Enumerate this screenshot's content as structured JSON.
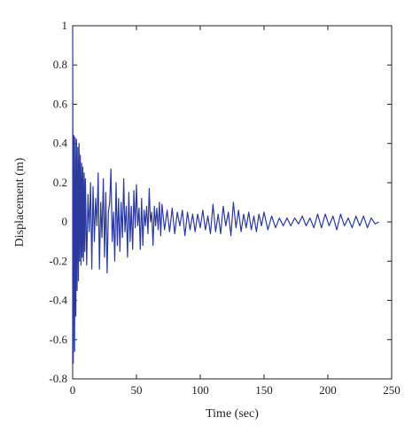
{
  "chart_data": {
    "type": "line",
    "title": "",
    "xlabel": "Time (sec)",
    "ylabel": "Displacement (m)",
    "xlim": [
      0,
      250
    ],
    "ylim": [
      -0.8,
      1
    ],
    "xticks": [
      0,
      50,
      100,
      150,
      200,
      250
    ],
    "yticks": [
      -0.8,
      -0.6,
      -0.4,
      -0.2,
      0,
      0.2,
      0.4,
      0.6,
      0.8,
      1
    ],
    "xtick_labels": [
      "0",
      "50",
      "100",
      "150",
      "200",
      "250"
    ],
    "ytick_labels": [
      "-0.8",
      "-0.6",
      "-0.4",
      "-0.2",
      "0",
      "0.2",
      "0.4",
      "0.6",
      "0.8",
      "1"
    ],
    "grid": false,
    "series": [
      {
        "color": "#2b3a9c",
        "x": [
          0,
          0.5,
          1,
          1.5,
          2,
          2.5,
          3,
          3.5,
          4,
          4.5,
          5,
          5.5,
          6,
          6.5,
          7,
          7.5,
          8,
          8.5,
          9,
          9.5,
          10,
          11,
          12,
          13,
          14,
          15,
          16,
          17,
          18,
          19,
          20,
          21,
          22,
          23,
          24,
          25,
          26,
          27,
          28,
          29,
          30,
          31,
          32,
          33,
          34,
          35,
          36,
          37,
          38,
          39,
          40,
          41,
          42,
          43,
          44,
          45,
          46,
          47,
          48,
          49,
          50,
          51,
          52,
          53,
          54,
          55,
          56,
          57,
          58,
          59,
          60,
          61,
          62,
          63,
          64,
          65,
          66,
          67,
          68,
          69,
          70,
          72,
          74,
          76,
          78,
          80,
          82,
          84,
          86,
          88,
          90,
          92,
          94,
          96,
          98,
          100,
          102,
          104,
          106,
          108,
          110,
          112,
          114,
          116,
          118,
          120,
          122,
          124,
          126,
          128,
          130,
          132,
          134,
          136,
          138,
          140,
          142,
          144,
          146,
          148,
          150,
          153,
          156,
          159,
          162,
          165,
          168,
          171,
          174,
          177,
          180,
          183,
          186,
          189,
          192,
          195,
          198,
          201,
          204,
          207,
          210,
          213,
          216,
          219,
          222,
          225,
          228,
          231,
          234,
          237,
          240
        ],
        "y": [
          1.0,
          -0.72,
          0.44,
          -0.66,
          0.43,
          -0.48,
          0.42,
          -0.35,
          0.38,
          -0.3,
          0.4,
          -0.2,
          0.34,
          -0.22,
          0.3,
          -0.18,
          0.28,
          -0.2,
          0.25,
          -0.15,
          0.22,
          -0.22,
          0.14,
          -0.05,
          0.2,
          -0.24,
          0.18,
          -0.1,
          0.12,
          -0.02,
          0.25,
          -0.24,
          0.1,
          -0.08,
          0.22,
          -0.18,
          0.15,
          -0.26,
          0.05,
          0.1,
          0.27,
          -0.1,
          0.05,
          -0.2,
          0.2,
          -0.12,
          0.12,
          -0.15,
          0.1,
          -0.08,
          0.22,
          -0.05,
          0.08,
          -0.18,
          0.15,
          -0.1,
          0.08,
          -0.14,
          0.16,
          -0.03,
          0.19,
          -0.02,
          0.07,
          -0.14,
          0.12,
          -0.12,
          0.06,
          -0.02,
          0.08,
          -0.06,
          0.17,
          0.0,
          0.05,
          -0.12,
          0.08,
          -0.02,
          0.07,
          -0.04,
          0.1,
          -0.07,
          0.09,
          -0.04,
          0.06,
          -0.05,
          0.07,
          -0.06,
          0.05,
          -0.02,
          0.06,
          -0.07,
          0.05,
          -0.04,
          0.04,
          -0.05,
          0.04,
          -0.03,
          0.06,
          -0.04,
          0.03,
          -0.06,
          0.09,
          -0.05,
          0.04,
          -0.06,
          0.08,
          -0.02,
          0.05,
          -0.07,
          0.1,
          -0.03,
          0.06,
          -0.05,
          0.04,
          -0.03,
          0.05,
          -0.04,
          0.03,
          -0.05,
          0.04,
          -0.02,
          0.05,
          -0.04,
          0.03,
          -0.03,
          0.02,
          -0.02,
          0.02,
          -0.02,
          0.02,
          -0.01,
          0.03,
          -0.02,
          0.02,
          -0.03,
          0.04,
          -0.03,
          0.04,
          -0.02,
          0.03,
          -0.04,
          0.04,
          -0.02,
          0.02,
          -0.03,
          0.03,
          -0.02,
          0.03,
          -0.03,
          0.02,
          -0.01,
          0.0
        ]
      }
    ]
  }
}
